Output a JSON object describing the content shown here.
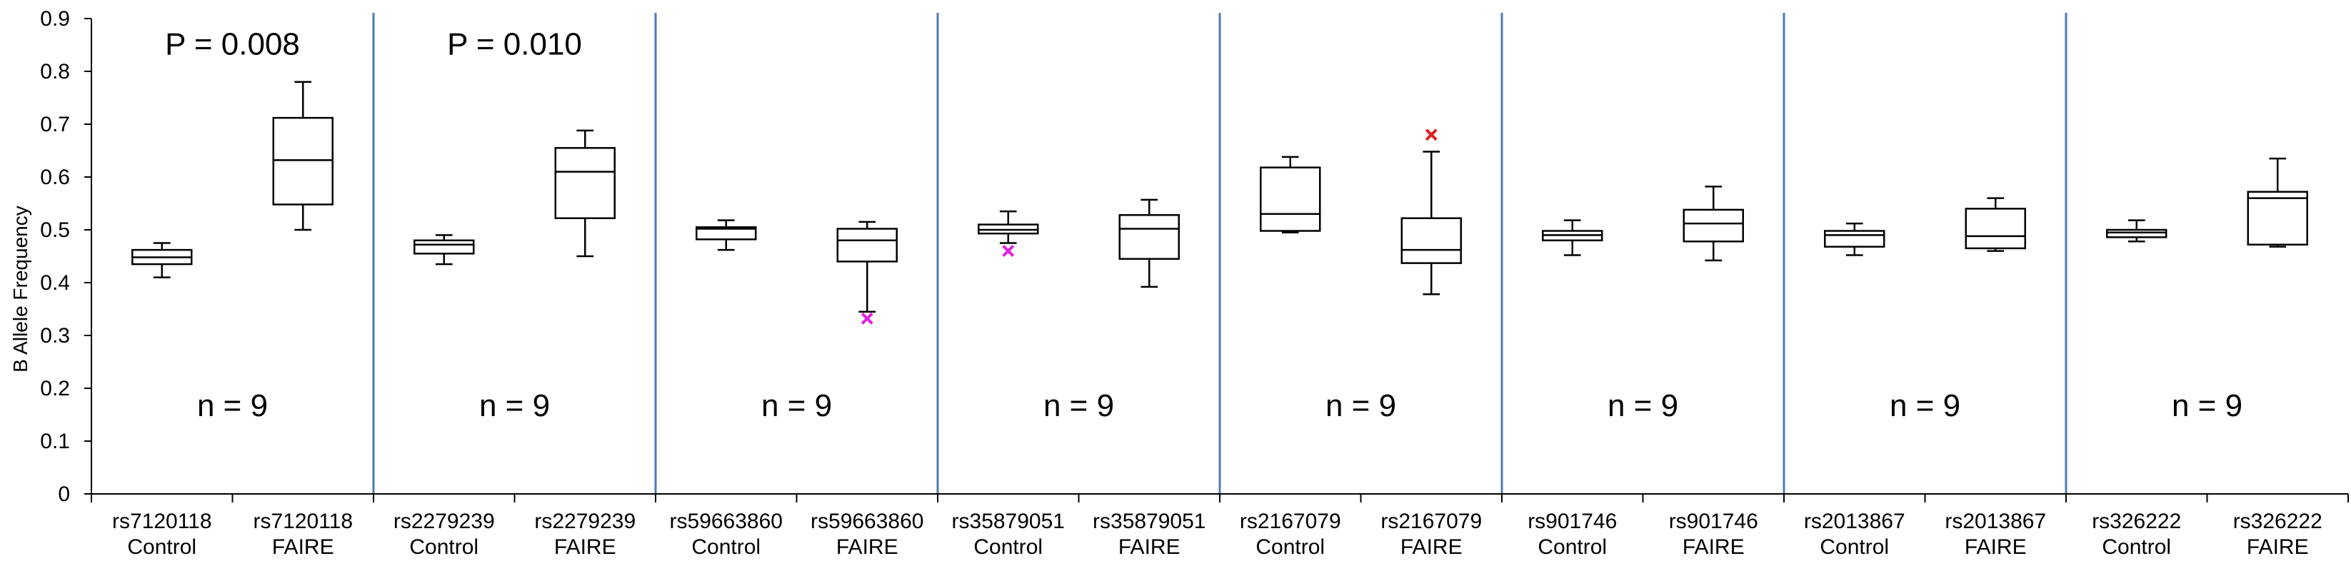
{
  "chart_data": {
    "type": "box",
    "title": "",
    "xlabel": "",
    "ylabel": "B Allele Frequency",
    "ylim": [
      0,
      0.9
    ],
    "yticks": [
      "0",
      "0.1",
      "0.2",
      "0.3",
      "0.4",
      "0.5",
      "0.6",
      "0.7",
      "0.8",
      "0.9"
    ],
    "grid": false,
    "groups": [
      {
        "snp": "rs7120118",
        "n_label": "n = 9",
        "p_label": "P = 0.008",
        "boxes": [
          {
            "line1": "rs7120118",
            "line2": "Control",
            "min": 0.41,
            "q1": 0.435,
            "median": 0.448,
            "q3": 0.462,
            "max": 0.475,
            "outliers": []
          },
          {
            "line1": "rs7120118",
            "line2": "FAIRE",
            "min": 0.5,
            "q1": 0.548,
            "median": 0.632,
            "q3": 0.712,
            "max": 0.78,
            "outliers": []
          }
        ]
      },
      {
        "snp": "rs2279239",
        "n_label": "n = 9",
        "p_label": "P = 0.010",
        "boxes": [
          {
            "line1": "rs2279239",
            "line2": "Control",
            "min": 0.435,
            "q1": 0.455,
            "median": 0.472,
            "q3": 0.48,
            "max": 0.49,
            "outliers": []
          },
          {
            "line1": "rs2279239",
            "line2": "FAIRE",
            "min": 0.45,
            "q1": 0.522,
            "median": 0.61,
            "q3": 0.655,
            "max": 0.688,
            "outliers": []
          }
        ]
      },
      {
        "snp": "rs59663860",
        "n_label": "n = 9",
        "p_label": "",
        "boxes": [
          {
            "line1": "rs59663860",
            "line2": "Control",
            "min": 0.462,
            "q1": 0.482,
            "median": 0.502,
            "q3": 0.505,
            "max": 0.518,
            "outliers": []
          },
          {
            "line1": "rs59663860",
            "line2": "FAIRE",
            "min": 0.345,
            "q1": 0.44,
            "median": 0.48,
            "q3": 0.502,
            "max": 0.515,
            "outliers": [
              {
                "value": 0.332,
                "color": "#e020e0"
              }
            ]
          }
        ]
      },
      {
        "snp": "rs35879051",
        "n_label": "n = 9",
        "p_label": "",
        "boxes": [
          {
            "line1": "rs35879051",
            "line2": "Control",
            "min": 0.475,
            "q1": 0.493,
            "median": 0.5,
            "q3": 0.51,
            "max": 0.535,
            "outliers": [
              {
                "value": 0.46,
                "color": "#e020e0"
              }
            ]
          },
          {
            "line1": "rs35879051",
            "line2": "FAIRE",
            "min": 0.392,
            "q1": 0.445,
            "median": 0.502,
            "q3": 0.528,
            "max": 0.557,
            "outliers": []
          }
        ]
      },
      {
        "snp": "rs2167079",
        "n_label": "n = 9",
        "p_label": "",
        "boxes": [
          {
            "line1": "rs2167079",
            "line2": "Control",
            "min": 0.495,
            "q1": 0.498,
            "median": 0.53,
            "q3": 0.618,
            "max": 0.638,
            "outliers": []
          },
          {
            "line1": "rs2167079",
            "line2": "FAIRE",
            "min": 0.378,
            "q1": 0.437,
            "median": 0.462,
            "q3": 0.522,
            "max": 0.648,
            "outliers": [
              {
                "value": 0.68,
                "color": "#e02020"
              }
            ]
          }
        ]
      },
      {
        "snp": "rs901746",
        "n_label": "n = 9",
        "p_label": "",
        "boxes": [
          {
            "line1": "rs901746",
            "line2": "Control",
            "min": 0.452,
            "q1": 0.48,
            "median": 0.49,
            "q3": 0.498,
            "max": 0.518,
            "outliers": []
          },
          {
            "line1": "rs901746",
            "line2": "FAIRE",
            "min": 0.442,
            "q1": 0.478,
            "median": 0.512,
            "q3": 0.538,
            "max": 0.582,
            "outliers": []
          }
        ]
      },
      {
        "snp": "rs2013867",
        "n_label": "n = 9",
        "p_label": "",
        "boxes": [
          {
            "line1": "rs2013867",
            "line2": "Control",
            "min": 0.452,
            "q1": 0.468,
            "median": 0.49,
            "q3": 0.498,
            "max": 0.512,
            "outliers": []
          },
          {
            "line1": "rs2013867",
            "line2": "FAIRE",
            "min": 0.46,
            "q1": 0.465,
            "median": 0.488,
            "q3": 0.54,
            "max": 0.56,
            "outliers": []
          }
        ]
      },
      {
        "snp": "rs326222",
        "n_label": "n = 9",
        "p_label": "",
        "boxes": [
          {
            "line1": "rs326222",
            "line2": "Control",
            "min": 0.478,
            "q1": 0.486,
            "median": 0.495,
            "q3": 0.5,
            "max": 0.518,
            "outliers": []
          },
          {
            "line1": "rs326222",
            "line2": "FAIRE",
            "min": 0.468,
            "q1": 0.472,
            "median": 0.56,
            "q3": 0.572,
            "max": 0.635,
            "outliers": []
          }
        ]
      }
    ],
    "colors": {
      "box_stroke": "#000000",
      "separator": "#4a7db5",
      "axis": "#000000"
    }
  }
}
